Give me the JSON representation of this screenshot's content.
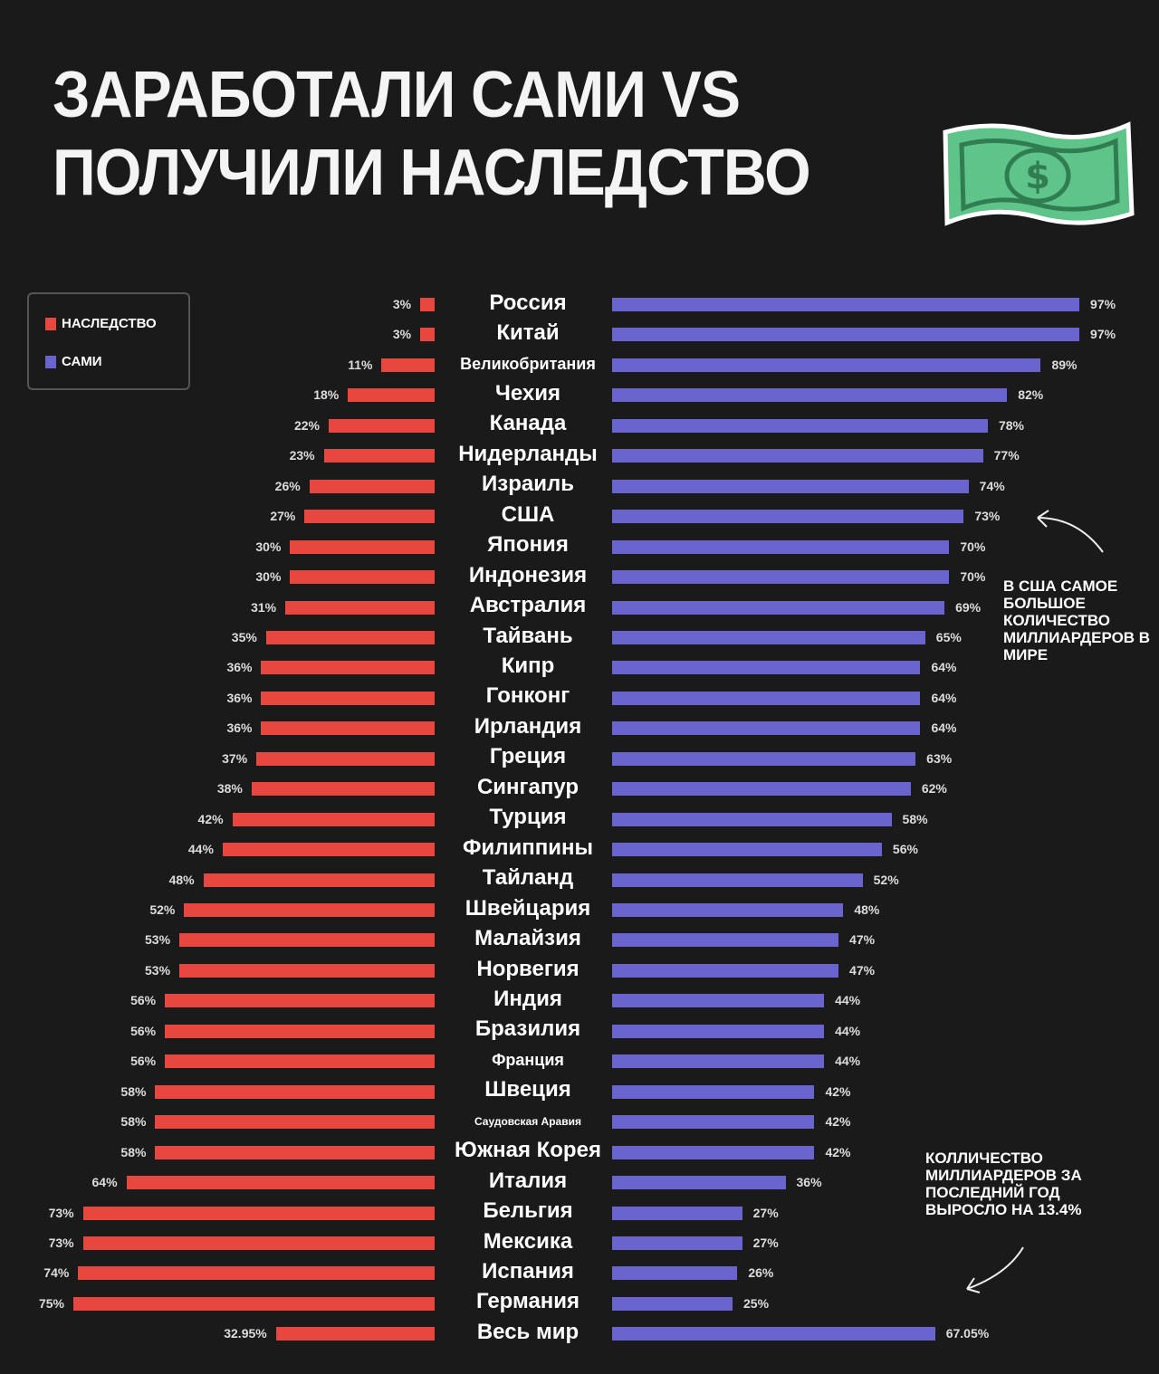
{
  "title": {
    "line1": "ЗАРАБОТАЛИ САМИ VS",
    "line2": "ПОЛУЧИЛИ НАСЛЕДСТВО"
  },
  "decoration": {
    "icon": "dollar-banknote-icon",
    "symbol": "$",
    "color": "#5fc48a"
  },
  "colors": {
    "inherited": "#e8473f",
    "self_made": "#6a64cf"
  },
  "chart_data": {
    "type": "bar",
    "orientation": "horizontal-diverging",
    "legend": {
      "placement": "top-left",
      "entries": [
        "НАСЛЕДСТВО",
        "САМИ"
      ]
    },
    "categories": [
      "Россия",
      "Китай",
      "Великобритания",
      "Чехия",
      "Канада",
      "Нидерланды",
      "Израиль",
      "США",
      "Япония",
      "Индонезия",
      "Австралия",
      "Тайвань",
      "Кипр",
      "Гонконг",
      "Ирландия",
      "Греция",
      "Сингапур",
      "Турция",
      "Филиппины",
      "Тайланд",
      "Швейцария",
      "Малайзия",
      "Норвегия",
      "Индия",
      "Бразилия",
      "Франция",
      "Швеция",
      "Саудовская Аравия",
      "Южная Корея",
      "Италия",
      "Бельгия",
      "Мексика",
      "Испания",
      "Германия",
      "Весь мир"
    ],
    "series": [
      {
        "name": "НАСЛЕДСТВО",
        "values": [
          3,
          3,
          11,
          18,
          22,
          23,
          26,
          27,
          30,
          30,
          31,
          35,
          36,
          36,
          36,
          37,
          38,
          42,
          44,
          48,
          52,
          53,
          53,
          56,
          56,
          56,
          58,
          58,
          58,
          64,
          73,
          73,
          74,
          75,
          32.95
        ],
        "labels": [
          "3%",
          "3%",
          "11%",
          "18%",
          "22%",
          "23%",
          "26%",
          "27%",
          "30%",
          "30%",
          "31%",
          "35%",
          "36%",
          "36%",
          "36%",
          "37%",
          "38%",
          "42%",
          "44%",
          "48%",
          "52%",
          "53%",
          "53%",
          "56%",
          "56%",
          "56%",
          "58%",
          "58%",
          "58%",
          "64%",
          "73%",
          "73%",
          "74%",
          "75%",
          "32.95%"
        ]
      },
      {
        "name": "САМИ",
        "values": [
          97,
          97,
          89,
          82,
          78,
          77,
          74,
          73,
          70,
          70,
          69,
          65,
          64,
          64,
          64,
          63,
          62,
          58,
          56,
          52,
          48,
          47,
          47,
          44,
          44,
          44,
          42,
          42,
          42,
          36,
          27,
          27,
          26,
          25,
          67.05
        ],
        "labels": [
          "97%",
          "97%",
          "89%",
          "82%",
          "78%",
          "77%",
          "74%",
          "73%",
          "70%",
          "70%",
          "69%",
          "65%",
          "64%",
          "64%",
          "64%",
          "63%",
          "62%",
          "58%",
          "56%",
          "52%",
          "48%",
          "47%",
          "47%",
          "44%",
          "44%",
          "44%",
          "42%",
          "42%",
          "42%",
          "36%",
          "27%",
          "27%",
          "26%",
          "25%",
          "67.05%"
        ]
      }
    ],
    "xlim": [
      0,
      100
    ],
    "annotations": [
      {
        "text": "В США САМОЕ БОЛЬШОЕ КОЛИЧЕСТВО МИЛЛИАРДЕРОВ В МИРЕ",
        "points_to": "США"
      },
      {
        "text": "КОЛЛИЧЕСТВО МИЛЛИАРДЕРОВ ЗА ПОСЛЕДНИЙ ГОД ВЫРОСЛО НА 13.4%",
        "points_to": "Весь мир"
      }
    ]
  }
}
